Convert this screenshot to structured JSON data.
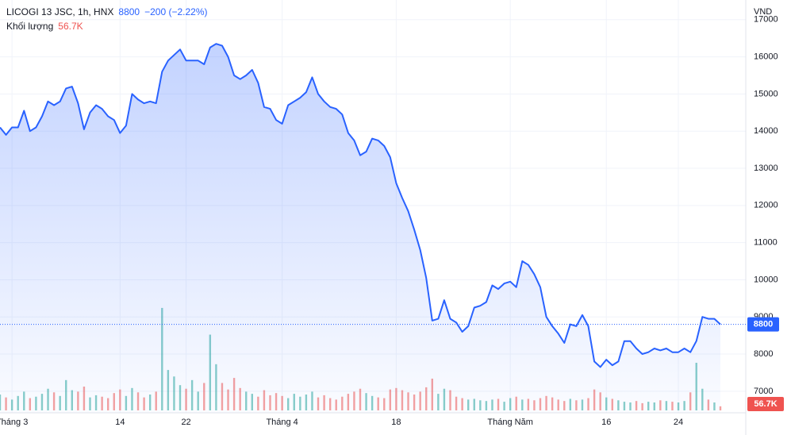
{
  "chart_data": {
    "type": "line",
    "title": "LICOGI 13 JSC, 1h, HNX",
    "change": "−200 (−2.22%)",
    "currency": "VND",
    "ylim": [
      6420,
      17530
    ],
    "yticks": [
      7000,
      8000,
      9000,
      10000,
      11000,
      12000,
      13000,
      14000,
      15000,
      16000,
      17000
    ],
    "xticks": [
      {
        "value": 2,
        "label": "Tháng 3"
      },
      {
        "value": 20,
        "label": "14"
      },
      {
        "value": 31,
        "label": "22"
      },
      {
        "value": 47,
        "label": "Tháng 4"
      },
      {
        "value": 66,
        "label": "18"
      },
      {
        "value": 85,
        "label": "Tháng Năm"
      },
      {
        "value": 101,
        "label": "16"
      },
      {
        "value": 113,
        "label": "24"
      }
    ],
    "grid": true,
    "y2lim": [
      0,
      5280000
    ],
    "series": [
      {
        "color": "#2962ff",
        "values": [
          14100,
          13900,
          14100,
          14100,
          14550,
          14000,
          14100,
          14400,
          14800,
          14700,
          14800,
          15150,
          15200,
          14750,
          14050,
          14500,
          14700,
          14600,
          14400,
          14300,
          13950,
          14150,
          15000,
          14850,
          14750,
          14800,
          14750,
          15600,
          15900,
          16050,
          16200,
          15900,
          15900,
          15900,
          15800,
          16250,
          16350,
          16300,
          16000,
          15500,
          15400,
          15500,
          15650,
          15300,
          14650,
          14600,
          14300,
          14200,
          14700,
          14800,
          14900,
          15050,
          15450,
          15000,
          14800,
          14650,
          14600,
          14450,
          13950,
          13750,
          13350,
          13450,
          13800,
          13750,
          13600,
          13300,
          12600,
          12200,
          11850,
          11350,
          10800,
          10050,
          8900,
          8950,
          9450,
          8950,
          8850,
          8600,
          8750,
          9250,
          9300,
          9400,
          9850,
          9750,
          9900,
          9950,
          9800,
          10500,
          10400,
          10150,
          9800,
          9000,
          8750,
          8550,
          8300,
          8800,
          8750,
          9050,
          8750,
          7800,
          7650,
          7850,
          7700,
          7800,
          8350,
          8350,
          8150,
          8000,
          8050,
          8150,
          8100,
          8150,
          8050,
          8050,
          8150,
          8050,
          8350,
          9000,
          8950,
          8950,
          8800
        ]
      },
      {
        "name": "Khối lượng",
        "axis": "y2",
        "up_color": "#26a69a",
        "down_color": "#ef5350",
        "last_label": "56.7K",
        "values": [
          220000,
          180000,
          150000,
          200000,
          260000,
          170000,
          190000,
          230000,
          300000,
          250000,
          200000,
          420000,
          280000,
          260000,
          330000,
          180000,
          210000,
          190000,
          170000,
          240000,
          290000,
          200000,
          310000,
          250000,
          180000,
          220000,
          260000,
          1420000,
          560000,
          470000,
          350000,
          300000,
          420000,
          260000,
          380000,
          1050000,
          640000,
          380000,
          290000,
          450000,
          310000,
          260000,
          230000,
          190000,
          280000,
          210000,
          240000,
          200000,
          170000,
          230000,
          190000,
          220000,
          260000,
          180000,
          210000,
          170000,
          150000,
          190000,
          230000,
          260000,
          300000,
          240000,
          200000,
          180000,
          170000,
          290000,
          310000,
          280000,
          250000,
          220000,
          260000,
          320000,
          440000,
          230000,
          300000,
          280000,
          190000,
          170000,
          150000,
          160000,
          140000,
          130000,
          150000,
          160000,
          120000,
          170000,
          190000,
          150000,
          160000,
          140000,
          170000,
          200000,
          180000,
          150000,
          130000,
          160000,
          140000,
          150000,
          170000,
          290000,
          250000,
          180000,
          160000,
          140000,
          120000,
          110000,
          130000,
          100000,
          120000,
          110000,
          140000,
          130000,
          120000,
          110000,
          130000,
          250000,
          660000,
          300000,
          150000,
          110000,
          56700
        ]
      }
    ]
  }
}
